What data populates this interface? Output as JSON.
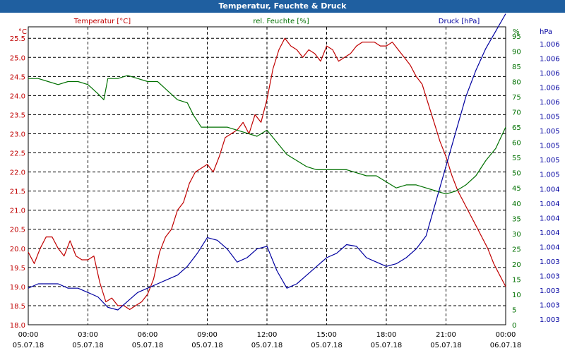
{
  "window": {
    "title": "Temperatur, Feuchte & Druck"
  },
  "chart_data": {
    "type": "line",
    "title": "Temperatur, Feuchte & Druck",
    "grid": true,
    "legend_placement": "top",
    "colors": {
      "temperature": "#c00000",
      "humidity": "#007000",
      "pressure": "#0000a0",
      "grid": "#000000"
    },
    "x_ticks": [
      {
        "time": "00:00",
        "date": "05.07.18"
      },
      {
        "time": "03:00",
        "date": "05.07.18"
      },
      {
        "time": "06:00",
        "date": "05.07.18"
      },
      {
        "time": "09:00",
        "date": "05.07.18"
      },
      {
        "time": "12:00",
        "date": "05.07.18"
      },
      {
        "time": "15:00",
        "date": "05.07.18"
      },
      {
        "time": "18:00",
        "date": "05.07.18"
      },
      {
        "time": "21:00",
        "date": "05.07.18"
      },
      {
        "time": "00:00",
        "date": "06.07.18"
      }
    ],
    "axes": {
      "temperature": {
        "label": "Temperatur [°C]",
        "unit": "°C",
        "ylim": [
          18.0,
          25.8
        ],
        "ticks": [
          "18.0",
          "18.5",
          "19.0",
          "19.5",
          "20.0",
          "20.5",
          "21.0",
          "21.5",
          "22.0",
          "22.5",
          "23.0",
          "23.5",
          "24.0",
          "24.5",
          "25.0",
          "25.5"
        ]
      },
      "humidity": {
        "label": "rel. Feuchte [%]",
        "unit": "%",
        "ylim": [
          0,
          98
        ],
        "ticks": [
          "0",
          "5",
          "10",
          "15",
          "20",
          "25",
          "30",
          "35",
          "40",
          "45",
          "50",
          "55",
          "60",
          "65",
          "70",
          "75",
          "80",
          "85",
          "90",
          "95"
        ]
      },
      "pressure": {
        "label": "Druck [hPa]",
        "unit": "hPa",
        "ylim": [
          1002.58,
          1006.0
        ],
        "ticks": [
          "1.003",
          "1.003",
          "1.003",
          "1.003",
          "1.003",
          "1.004",
          "1.004",
          "1.004",
          "1.004",
          "1.004",
          "1.005",
          "1.005",
          "1.005",
          "1.005",
          "1.005",
          "1.006",
          "1.006",
          "1.006",
          "1.006",
          "1.006"
        ]
      }
    },
    "series": [
      {
        "name": "Temperatur [°C]",
        "axis": "temperature",
        "x_hours": [
          0,
          0.3,
          0.6,
          0.9,
          1.2,
          1.5,
          1.8,
          2.1,
          2.4,
          2.7,
          3.0,
          3.3,
          3.6,
          3.9,
          4.2,
          4.5,
          4.8,
          5.1,
          5.4,
          5.7,
          6.0,
          6.3,
          6.6,
          6.9,
          7.2,
          7.5,
          7.8,
          8.1,
          8.4,
          8.7,
          9.0,
          9.3,
          9.6,
          9.9,
          10.2,
          10.5,
          10.8,
          11.1,
          11.4,
          11.7,
          12.0,
          12.3,
          12.6,
          12.9,
          13.2,
          13.5,
          13.8,
          14.1,
          14.4,
          14.7,
          15.0,
          15.3,
          15.6,
          15.9,
          16.2,
          16.5,
          16.8,
          17.1,
          17.4,
          17.7,
          18.0,
          18.3,
          18.6,
          18.9,
          19.2,
          19.5,
          19.8,
          20.1,
          20.4,
          20.7,
          21.0,
          21.3,
          21.6,
          21.9,
          22.2,
          22.5,
          22.8,
          23.1,
          23.4,
          23.7,
          24.0
        ],
        "values": [
          19.9,
          19.6,
          20.0,
          20.3,
          20.3,
          20.0,
          19.8,
          20.2,
          19.8,
          19.7,
          19.7,
          19.8,
          19.1,
          18.6,
          18.7,
          18.5,
          18.5,
          18.4,
          18.5,
          18.6,
          18.8,
          19.2,
          19.9,
          20.3,
          20.5,
          21.0,
          21.2,
          21.7,
          22.0,
          22.1,
          22.2,
          22.0,
          22.4,
          22.9,
          23.0,
          23.1,
          23.3,
          23.0,
          23.5,
          23.3,
          23.9,
          24.7,
          25.2,
          25.5,
          25.3,
          25.2,
          25.0,
          25.2,
          25.1,
          24.9,
          25.3,
          25.2,
          24.9,
          25.0,
          25.1,
          25.3,
          25.4,
          25.4,
          25.4,
          25.3,
          25.3,
          25.4,
          25.2,
          25.0,
          24.8,
          24.5,
          24.3,
          23.8,
          23.3,
          22.8,
          22.4,
          21.9,
          21.5,
          21.2,
          20.9,
          20.6,
          20.3,
          20.0,
          19.6,
          19.3,
          19.0
        ]
      },
      {
        "name": "rel. Feuchte [%]",
        "axis": "humidity",
        "x_hours": [
          0,
          0.5,
          1.0,
          1.5,
          2.0,
          2.5,
          3.0,
          3.5,
          3.8,
          4.0,
          4.5,
          5.0,
          5.5,
          6.0,
          6.5,
          7.0,
          7.5,
          8.0,
          8.3,
          8.7,
          9.0,
          9.5,
          10.0,
          10.5,
          11.0,
          11.5,
          12.0,
          12.5,
          13.0,
          13.5,
          14.0,
          14.5,
          15.0,
          15.5,
          16.0,
          16.5,
          17.0,
          17.5,
          18.0,
          18.5,
          19.0,
          19.5,
          20.0,
          20.5,
          21.0,
          21.5,
          22.0,
          22.5,
          23.0,
          23.5,
          24.0
        ],
        "values": [
          81,
          81,
          80,
          79,
          80,
          80,
          79,
          76,
          74,
          81,
          81,
          82,
          81,
          80,
          80,
          77,
          74,
          73,
          69,
          65,
          65,
          65,
          65,
          64,
          63,
          62,
          64,
          60,
          56,
          54,
          52,
          51,
          51,
          51,
          51,
          50,
          49,
          49,
          47,
          45,
          46,
          46,
          45,
          44,
          43,
          44,
          46,
          49,
          54,
          58,
          65
        ]
      },
      {
        "name": "Druck [hPa]",
        "axis": "pressure",
        "x_hours": [
          0,
          0.5,
          1.0,
          1.5,
          2.0,
          2.5,
          3.0,
          3.5,
          4.0,
          4.5,
          5.0,
          5.5,
          6.0,
          6.5,
          7.0,
          7.5,
          8.0,
          8.5,
          9.0,
          9.5,
          10.0,
          10.5,
          11.0,
          11.5,
          12.0,
          12.5,
          13.0,
          13.5,
          14.0,
          14.5,
          15.0,
          15.5,
          16.0,
          16.5,
          17.0,
          17.5,
          18.0,
          18.5,
          19.0,
          19.5,
          20.0,
          20.5,
          21.0,
          21.5,
          22.0,
          22.5,
          23.0,
          23.5,
          24.0
        ],
        "values": [
          1003.0,
          1003.05,
          1003.05,
          1003.05,
          1003.0,
          1003.0,
          1002.95,
          1002.9,
          1002.78,
          1002.75,
          1002.85,
          1002.95,
          1003.0,
          1003.05,
          1003.1,
          1003.15,
          1003.25,
          1003.4,
          1003.58,
          1003.55,
          1003.45,
          1003.3,
          1003.35,
          1003.45,
          1003.48,
          1003.2,
          1003.0,
          1003.05,
          1003.15,
          1003.25,
          1003.35,
          1003.4,
          1003.5,
          1003.48,
          1003.35,
          1003.3,
          1003.25,
          1003.28,
          1003.35,
          1003.45,
          1003.6,
          1004.0,
          1004.4,
          1004.8,
          1005.2,
          1005.5,
          1005.75,
          1005.95,
          1006.15
        ]
      }
    ]
  }
}
